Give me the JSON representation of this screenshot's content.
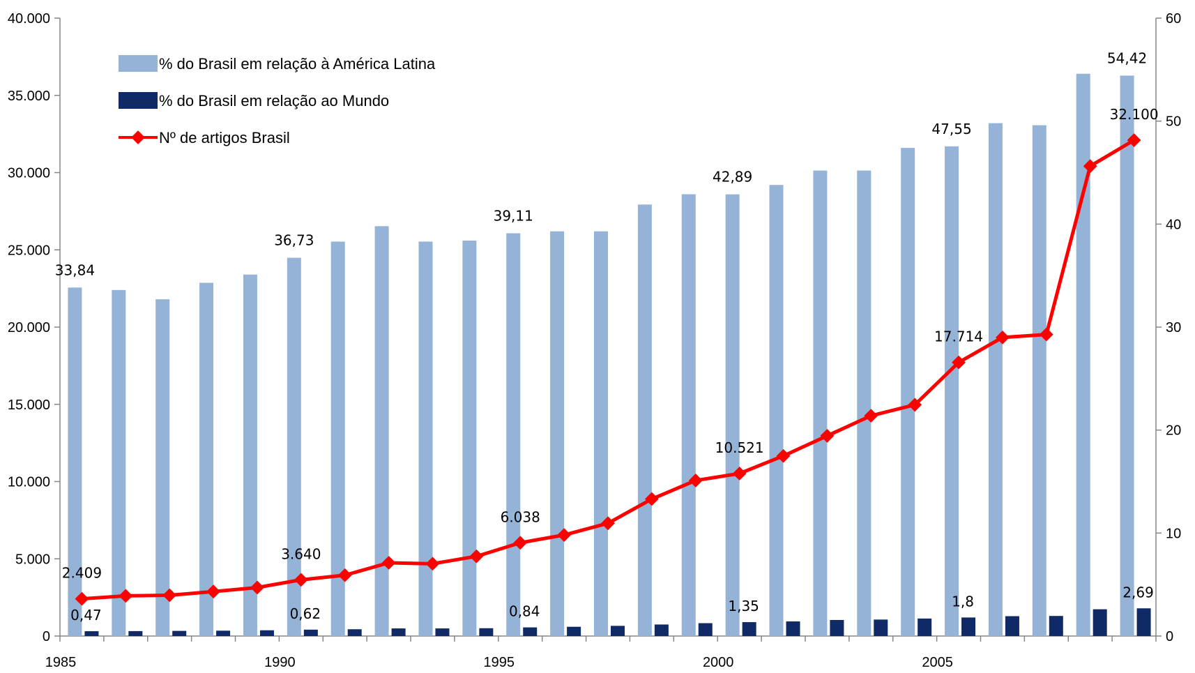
{
  "chart_data": {
    "type": "bar",
    "x": [
      1985,
      1986,
      1987,
      1988,
      1989,
      1990,
      1991,
      1992,
      1993,
      1994,
      1995,
      1996,
      1997,
      1998,
      1999,
      2000,
      2001,
      2002,
      2003,
      2004,
      2005,
      2006,
      2007,
      2008,
      2009
    ],
    "x_tick_labels": [
      "1985",
      "1990",
      "1995",
      "2000",
      "2005"
    ],
    "y_left": {
      "range": [
        0,
        40000
      ],
      "ticks": [
        "0",
        "5.000",
        "10.000",
        "15.000",
        "20.000",
        "25.000",
        "30.000",
        "35.000",
        "40.000"
      ]
    },
    "y_right": {
      "range": [
        0,
        60
      ],
      "ticks": [
        "0",
        "10",
        "20",
        "30",
        "40",
        "50",
        "60"
      ]
    },
    "series": [
      {
        "name": "% do Brasil em relação à América Latina",
        "type": "bar",
        "axis": "right",
        "color": "#95B3D7",
        "values": [
          33.84,
          33.6,
          32.7,
          34.3,
          35.1,
          36.73,
          38.3,
          39.8,
          38.3,
          38.4,
          39.11,
          39.3,
          39.3,
          41.9,
          42.9,
          42.89,
          43.8,
          45.2,
          45.2,
          47.4,
          47.55,
          49.8,
          49.6,
          54.6,
          54.42
        ],
        "data_labels": [
          {
            "index": 0,
            "text": "33,84"
          },
          {
            "index": 5,
            "text": "36,73"
          },
          {
            "index": 10,
            "text": "39,11"
          },
          {
            "index": 15,
            "text": "42,89"
          },
          {
            "index": 20,
            "text": "47,55"
          },
          {
            "index": 24,
            "text": "54,42"
          }
        ]
      },
      {
        "name": "% do Brasil em relação ao Mundo",
        "type": "bar",
        "axis": "right",
        "color": "#0F2A66",
        "values": [
          0.47,
          0.48,
          0.5,
          0.52,
          0.56,
          0.62,
          0.66,
          0.74,
          0.74,
          0.76,
          0.84,
          0.9,
          0.99,
          1.12,
          1.25,
          1.35,
          1.42,
          1.56,
          1.6,
          1.7,
          1.8,
          1.93,
          1.95,
          2.6,
          2.69
        ],
        "data_labels": [
          {
            "index": 0,
            "text": "0,47"
          },
          {
            "index": 5,
            "text": "0,62"
          },
          {
            "index": 10,
            "text": "0,84"
          },
          {
            "index": 15,
            "text": "1,35"
          },
          {
            "index": 20,
            "text": "1,8"
          },
          {
            "index": 24,
            "text": "2,69"
          }
        ]
      },
      {
        "name": "Nº de artigos Brasil",
        "type": "line",
        "axis": "left",
        "color": "#FF0000",
        "values": [
          2409,
          2600,
          2640,
          2880,
          3140,
          3640,
          3940,
          4740,
          4680,
          5160,
          6038,
          6540,
          7300,
          8870,
          10070,
          10521,
          11660,
          12960,
          14260,
          14970,
          17714,
          19330,
          19520,
          30420,
          32100
        ],
        "data_labels": [
          {
            "index": 0,
            "text": "2.409"
          },
          {
            "index": 5,
            "text": "3.640"
          },
          {
            "index": 10,
            "text": "6.038"
          },
          {
            "index": 15,
            "text": "10.521"
          },
          {
            "index": 20,
            "text": "17.714"
          },
          {
            "index": 24,
            "text": "32.100"
          }
        ]
      }
    ],
    "legend": {
      "position": "top-left"
    },
    "grid": false
  }
}
